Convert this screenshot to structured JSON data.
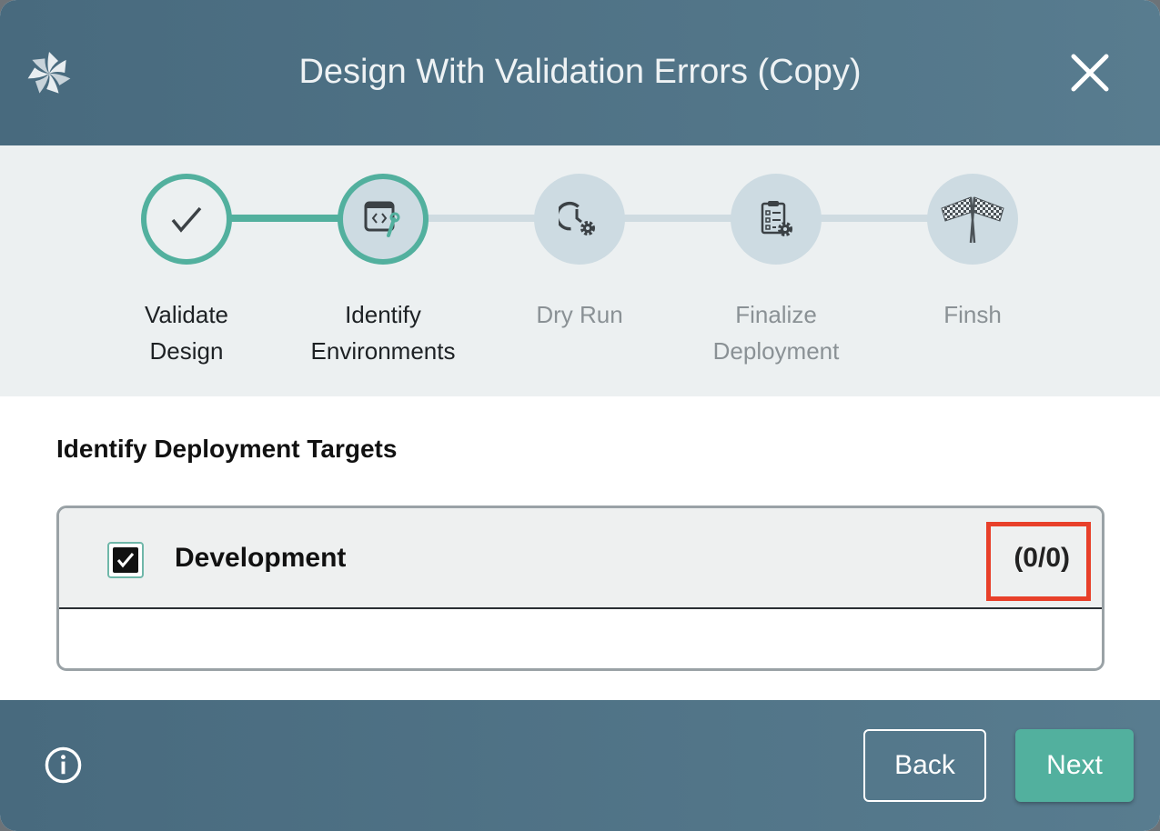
{
  "header": {
    "title": "Design With Validation Errors (Copy)",
    "logo_icon": "pinwheel-logo",
    "close_icon": "close-icon"
  },
  "stepper": {
    "accent": "#52b09e",
    "steps": [
      {
        "label_line1": "Validate",
        "label_line2": "Design",
        "icon": "checkmark-icon",
        "state": "done"
      },
      {
        "label_line1": "Identify",
        "label_line2": "Environments",
        "icon": "code-wrench-icon",
        "state": "current"
      },
      {
        "label_line1": "Dry Run",
        "label_line2": "",
        "icon": "history-gear-icon",
        "state": "pending"
      },
      {
        "label_line1": "Finalize",
        "label_line2": "Deployment",
        "icon": "clipboard-gear-icon",
        "state": "pending"
      },
      {
        "label_line1": "Finsh",
        "label_line2": "",
        "icon": "checkered-flags-icon",
        "state": "pending"
      }
    ]
  },
  "main": {
    "section_title": "Identify Deployment Targets",
    "environments": [
      {
        "name": "Development",
        "checked": true,
        "count": "(0/0)"
      }
    ],
    "highlight_color": "#e8402a"
  },
  "footer": {
    "info_icon": "info-icon",
    "back_label": "Back",
    "next_label": "Next"
  }
}
